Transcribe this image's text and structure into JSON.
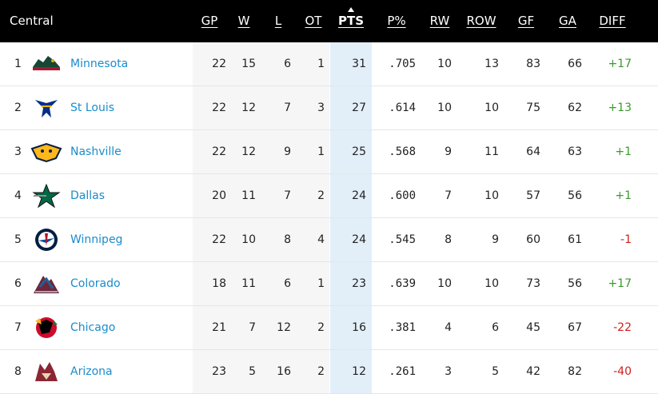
{
  "header": {
    "division": "Central",
    "columns": [
      "GP",
      "W",
      "L",
      "OT",
      "PTS",
      "P%",
      "RW",
      "ROW",
      "GF",
      "GA",
      "DIFF"
    ],
    "sorted_column": "PTS"
  },
  "colors": {
    "header_bg": "#000000",
    "team_link": "#1a8ccc",
    "positive_diff": "#3a9a2b",
    "negative_diff": "#d0201c",
    "pts_band": "#e2eff9"
  },
  "rows": [
    {
      "rank": "1",
      "team": "Minnesota",
      "logo": "wild-logo",
      "gp": "22",
      "w": "15",
      "l": "6",
      "ot": "1",
      "pts": "31",
      "pct": ".705",
      "rw": "10",
      "row": "13",
      "gf": "83",
      "ga": "66",
      "diff": "+17"
    },
    {
      "rank": "2",
      "team": "St Louis",
      "logo": "blues-logo",
      "gp": "22",
      "w": "12",
      "l": "7",
      "ot": "3",
      "pts": "27",
      "pct": ".614",
      "rw": "10",
      "row": "10",
      "gf": "75",
      "ga": "62",
      "diff": "+13"
    },
    {
      "rank": "3",
      "team": "Nashville",
      "logo": "predators-logo",
      "gp": "22",
      "w": "12",
      "l": "9",
      "ot": "1",
      "pts": "25",
      "pct": ".568",
      "rw": "9",
      "row": "11",
      "gf": "64",
      "ga": "63",
      "diff": "+1"
    },
    {
      "rank": "4",
      "team": "Dallas",
      "logo": "stars-logo",
      "gp": "20",
      "w": "11",
      "l": "7",
      "ot": "2",
      "pts": "24",
      "pct": ".600",
      "rw": "7",
      "row": "10",
      "gf": "57",
      "ga": "56",
      "diff": "+1"
    },
    {
      "rank": "5",
      "team": "Winnipeg",
      "logo": "jets-logo",
      "gp": "22",
      "w": "10",
      "l": "8",
      "ot": "4",
      "pts": "24",
      "pct": ".545",
      "rw": "8",
      "row": "9",
      "gf": "60",
      "ga": "61",
      "diff": "-1"
    },
    {
      "rank": "6",
      "team": "Colorado",
      "logo": "avalanche-logo",
      "gp": "18",
      "w": "11",
      "l": "6",
      "ot": "1",
      "pts": "23",
      "pct": ".639",
      "rw": "10",
      "row": "10",
      "gf": "73",
      "ga": "56",
      "diff": "+17"
    },
    {
      "rank": "7",
      "team": "Chicago",
      "logo": "blackhawks-logo",
      "gp": "21",
      "w": "7",
      "l": "12",
      "ot": "2",
      "pts": "16",
      "pct": ".381",
      "rw": "4",
      "row": "6",
      "gf": "45",
      "ga": "67",
      "diff": "-22"
    },
    {
      "rank": "8",
      "team": "Arizona",
      "logo": "coyotes-logo",
      "gp": "23",
      "w": "5",
      "l": "16",
      "ot": "2",
      "pts": "12",
      "pct": ".261",
      "rw": "3",
      "row": "5",
      "gf": "42",
      "ga": "82",
      "diff": "-40"
    }
  ]
}
